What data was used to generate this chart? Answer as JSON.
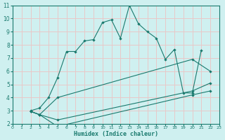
{
  "xlabel": "Humidex (Indice chaleur)",
  "bg_color": "#cff0f0",
  "grid_color": "#e8c8c8",
  "line_color": "#1a7a6e",
  "xlim": [
    0,
    23
  ],
  "ylim": [
    2,
    11
  ],
  "xticks": [
    0,
    1,
    2,
    3,
    4,
    5,
    6,
    7,
    8,
    9,
    10,
    11,
    12,
    13,
    14,
    15,
    16,
    17,
    18,
    19,
    20,
    21,
    22,
    23
  ],
  "yticks": [
    2,
    3,
    4,
    5,
    6,
    7,
    8,
    9,
    10,
    11
  ],
  "line1_x": [
    2,
    3,
    4,
    5,
    6,
    7,
    8,
    9,
    10,
    11,
    12,
    13,
    14,
    15,
    16,
    17,
    18,
    19,
    20,
    21
  ],
  "line1_y": [
    3.0,
    3.2,
    4.0,
    5.5,
    7.5,
    7.5,
    8.3,
    8.4,
    9.7,
    9.9,
    8.5,
    11.0,
    9.6,
    9.0,
    8.5,
    6.9,
    7.65,
    4.35,
    4.35,
    7.6
  ],
  "line2_x": [
    2,
    3,
    5,
    20,
    22
  ],
  "line2_y": [
    2.95,
    2.7,
    4.0,
    6.9,
    6.0
  ],
  "line3_x": [
    2,
    3,
    5,
    20,
    22
  ],
  "line3_y": [
    2.95,
    2.7,
    2.3,
    4.5,
    5.1
  ],
  "line4_x": [
    2,
    3,
    5,
    20,
    22
  ],
  "line4_y": [
    2.95,
    2.7,
    1.8,
    4.2,
    4.5
  ]
}
